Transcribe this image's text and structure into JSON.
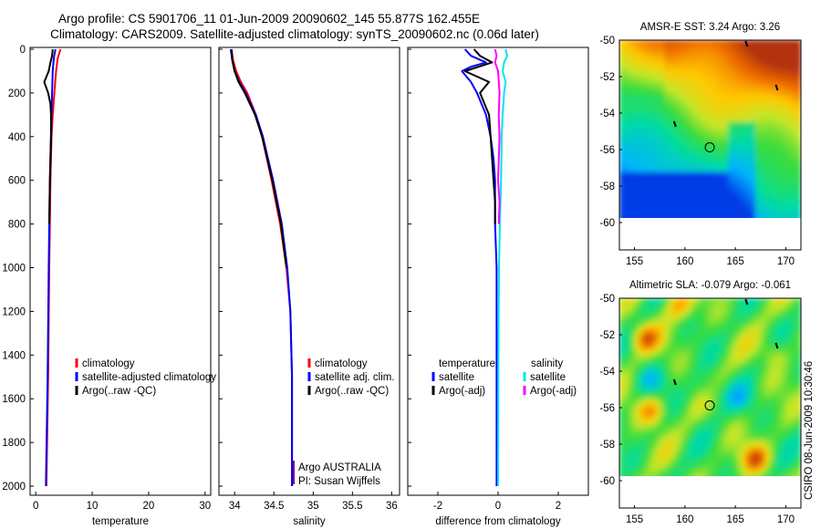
{
  "header": {
    "line1": "Argo profile: CS 5901706_11 01-Jun-2009 20090602_145 55.877S 162.455E",
    "line2": "Climatology: CARS2009. Satellite-adjusted climatology: synTS_20090602.nc (0.06d later)"
  },
  "side_label": "CSIRO 08-Jun-2009 10:30:46",
  "colors": {
    "climatology": "#ff0000",
    "satellite": "#0000ff",
    "argo": "#000000",
    "salinity_satellite": "#00e5ee",
    "salinity_argo": "#ff00ff"
  },
  "chart_data": [
    {
      "id": "temperature",
      "type": "line",
      "xlabel": "temperature",
      "ylabel": "",
      "xlim": [
        -1,
        31
      ],
      "ylim": [
        2050,
        0
      ],
      "xticks": [
        0,
        10,
        20,
        30
      ],
      "yticks": [
        0,
        200,
        400,
        600,
        800,
        1000,
        1200,
        1400,
        1600,
        1800,
        2000
      ],
      "legend": [
        "climatology",
        "satellite-adjusted climatology",
        "Argo(..raw -QC)"
      ],
      "series": [
        {
          "name": "climatology",
          "color": "#ff0000",
          "depth": [
            0,
            40,
            100,
            200,
            300,
            400,
            600,
            800,
            1000,
            1500,
            2000
          ],
          "values": [
            4.4,
            3.9,
            3.6,
            3.3,
            3.0,
            2.8,
            2.6,
            2.5,
            2.4,
            2.2,
            1.9
          ]
        },
        {
          "name": "satellite-adjusted climatology",
          "color": "#0000ff",
          "depth": [
            0,
            40,
            100,
            200,
            300,
            400,
            600,
            800,
            1000,
            1500,
            2000
          ],
          "values": [
            3.5,
            3.2,
            3.0,
            2.9,
            2.8,
            2.7,
            2.5,
            2.4,
            2.3,
            2.1,
            1.8
          ]
        },
        {
          "name": "Argo(..raw -QC)",
          "color": "#000000",
          "depth": [
            0,
            30,
            60,
            100,
            150,
            200,
            250,
            300,
            400,
            600,
            800
          ],
          "values": [
            3.0,
            2.9,
            2.6,
            2.3,
            1.5,
            2.2,
            2.6,
            2.7,
            2.7,
            2.5,
            2.4
          ]
        }
      ]
    },
    {
      "id": "salinity",
      "type": "line",
      "xlabel": "salinity",
      "ylabel": "",
      "xlim": [
        33.8,
        36.1
      ],
      "ylim": [
        2050,
        0
      ],
      "xticks": [
        34,
        34.5,
        35,
        35.5,
        36
      ],
      "xticklabels": [
        "34",
        "34.5",
        "35",
        "35.5",
        "36"
      ],
      "legend": [
        "climatology",
        "satellite adj. clim.",
        "Argo(..raw -QC)"
      ],
      "annotation": [
        "Argo AUSTRALIA",
        "PI: Susan Wijffels"
      ],
      "series": [
        {
          "name": "climatology",
          "color": "#ff0000",
          "depth": [
            0,
            50,
            100,
            150,
            200,
            300,
            400,
            600,
            800,
            1000,
            1200,
            1500,
            2000
          ],
          "values": [
            33.96,
            33.98,
            34.02,
            34.08,
            34.16,
            34.27,
            34.35,
            34.47,
            34.58,
            34.66,
            34.71,
            34.73,
            34.73
          ]
        },
        {
          "name": "satellite adj. clim.",
          "color": "#0000ff",
          "depth": [
            0,
            50,
            100,
            150,
            200,
            300,
            400,
            600,
            800,
            1000,
            1200,
            1500,
            2000
          ],
          "values": [
            33.95,
            33.97,
            34.0,
            34.06,
            34.14,
            34.27,
            34.36,
            34.49,
            34.6,
            34.67,
            34.71,
            34.73,
            34.73
          ]
        },
        {
          "name": "Argo(..raw -QC)",
          "color": "#000000",
          "depth": [
            0,
            50,
            100,
            150,
            200,
            300,
            400,
            600,
            800,
            1000
          ],
          "values": [
            33.96,
            33.97,
            34.0,
            34.05,
            34.13,
            34.26,
            34.35,
            34.48,
            34.59,
            34.66
          ]
        }
      ]
    },
    {
      "id": "difference",
      "type": "line",
      "xlabel": "difference from climatology",
      "ylabel": "",
      "xlim": [
        -3,
        3
      ],
      "ylim": [
        2050,
        0
      ],
      "xticks": [
        -2,
        0,
        2
      ],
      "legend_left_title": "temperature",
      "legend_left": [
        "satellite",
        "Argo(-adj)"
      ],
      "legend_right_title": "salinity",
      "legend_right": [
        "satellite",
        "Argo(-adj)"
      ],
      "series": [
        {
          "name": "temperature satellite",
          "color": "#0000ff",
          "depth": [
            0,
            30,
            60,
            80,
            100,
            150,
            200,
            300,
            400,
            500,
            600,
            700,
            800,
            1000,
            1500,
            2000
          ],
          "values": [
            -1.1,
            -0.9,
            -0.4,
            -0.9,
            -1.2,
            -0.9,
            -0.7,
            -0.4,
            -0.25,
            -0.15,
            -0.1,
            -0.1,
            -0.1,
            -0.05,
            -0.05,
            -0.05
          ]
        },
        {
          "name": "temperature Argo(-adj)",
          "color": "#000000",
          "depth": [
            0,
            30,
            60,
            100,
            150,
            200,
            300,
            400,
            500,
            600,
            700,
            800
          ],
          "values": [
            -0.8,
            -0.6,
            -0.2,
            -1.1,
            -0.3,
            -0.6,
            -0.3,
            -0.25,
            -0.2,
            -0.15,
            -0.1,
            -0.1
          ]
        },
        {
          "name": "salinity satellite",
          "color": "#00e5ee",
          "depth": [
            0,
            30,
            60,
            100,
            150,
            200,
            300,
            400,
            600,
            800,
            1000,
            1500,
            2000
          ],
          "values": [
            0.25,
            0.3,
            0.2,
            0.15,
            0.25,
            0.2,
            0.15,
            0.12,
            0.1,
            0.06,
            0.03,
            0.01,
            0.0
          ]
        },
        {
          "name": "salinity Argo(-adj)",
          "color": "#ff00ff",
          "depth": [
            0,
            30,
            60,
            100,
            200,
            300,
            400,
            600,
            700,
            800
          ],
          "values": [
            -0.1,
            -0.05,
            -0.1,
            0.0,
            0.05,
            0.02,
            0.05,
            0.0,
            0.05,
            0.02
          ]
        }
      ]
    },
    {
      "id": "sst_map",
      "type": "heatmap",
      "title": "AMSR-E SST: 3.24 Argo: 3.26",
      "xlim": [
        153.5,
        171.5
      ],
      "ylim": [
        -61.5,
        -50
      ],
      "data_extent_lat": [
        -60,
        -50
      ],
      "xticks": [
        155,
        160,
        165,
        170
      ],
      "yticks": [
        -50,
        -52,
        -54,
        -56,
        -58,
        -60
      ],
      "float_position": {
        "lon": 162.455,
        "lat": -55.877
      }
    },
    {
      "id": "sla_map",
      "type": "heatmap",
      "title": "Altimetric SLA: -0.079 Argo: -0.061",
      "xlim": [
        153.5,
        171.5
      ],
      "ylim": [
        -61.5,
        -50
      ],
      "data_extent_lat": [
        -60,
        -50
      ],
      "xticks": [
        155,
        160,
        165,
        170
      ],
      "yticks": [
        -50,
        -52,
        -54,
        -56,
        -58,
        -60
      ],
      "float_position": {
        "lon": 162.455,
        "lat": -55.877
      }
    }
  ]
}
